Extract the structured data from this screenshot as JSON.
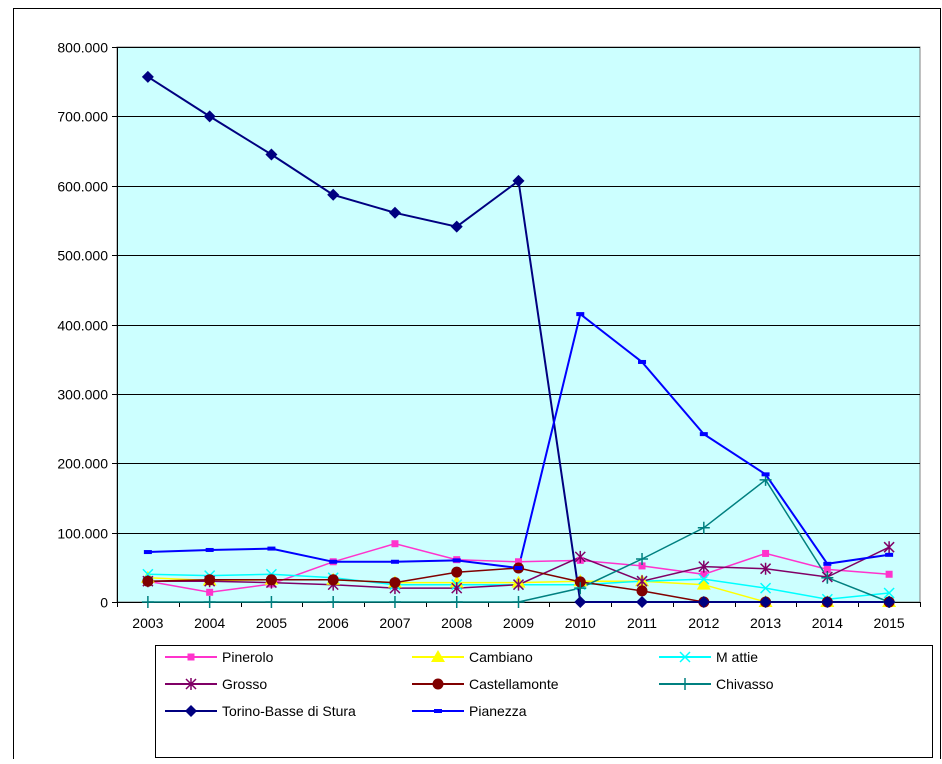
{
  "chart_data": {
    "type": "line",
    "title": "",
    "xlabel": "",
    "ylabel": "",
    "categories": [
      "2003",
      "2004",
      "2005",
      "2006",
      "2007",
      "2008",
      "2009",
      "2010",
      "2011",
      "2012",
      "2013",
      "2014",
      "2015"
    ],
    "ylim": [
      0,
      800000
    ],
    "y_ticks": [
      0,
      100000,
      200000,
      300000,
      400000,
      500000,
      600000,
      700000,
      800000
    ],
    "y_tick_labels": [
      "0",
      "100.000",
      "200.000",
      "300.000",
      "400.000",
      "500.000",
      "600.000",
      "700.000",
      "800.000"
    ],
    "grid": true,
    "plot_background": "#ccffff",
    "legend_placement": "bottom",
    "series": [
      {
        "name": "Pinerolo",
        "color": "#ff33cc",
        "marker": "square",
        "values": [
          30000,
          14000,
          26000,
          58000,
          84000,
          61000,
          58000,
          60000,
          52000,
          40000,
          70000,
          47000,
          40000
        ]
      },
      {
        "name": "Cambiano",
        "color": "#ffff00",
        "marker": "triangle",
        "values": [
          35000,
          31000,
          32000,
          32000,
          28000,
          28000,
          28000,
          30000,
          30000,
          25000,
          0,
          0,
          0
        ]
      },
      {
        "name": "M attie",
        "color": "#00ffff",
        "marker": "x",
        "values": [
          40000,
          38000,
          40000,
          35000,
          25000,
          25000,
          25000,
          25000,
          30000,
          33000,
          20000,
          4000,
          13000
        ]
      },
      {
        "name": "Grosso",
        "color": "#800066",
        "marker": "asterisk",
        "values": [
          30000,
          30000,
          28000,
          25000,
          20000,
          20000,
          25000,
          65000,
          30000,
          51000,
          48000,
          36000,
          79000
        ]
      },
      {
        "name": "Castellamonte",
        "color": "#800000",
        "marker": "circle",
        "values": [
          30000,
          32000,
          32000,
          32000,
          28000,
          43000,
          49000,
          29000,
          16000,
          0,
          0,
          0,
          0
        ]
      },
      {
        "name": "Chivasso",
        "color": "#008080",
        "marker": "plus",
        "values": [
          0,
          0,
          0,
          0,
          0,
          0,
          0,
          20000,
          62000,
          107000,
          176000,
          35000,
          0
        ]
      },
      {
        "name": "Torino-Basse di Stura",
        "color": "#000080",
        "marker": "diamond",
        "values": [
          757000,
          700000,
          645000,
          587000,
          561000,
          541000,
          607000,
          0,
          0,
          0,
          0,
          0,
          0
        ]
      },
      {
        "name": "Pianezza",
        "color": "#0000ff",
        "marker": "dash",
        "values": [
          72000,
          75000,
          77000,
          58000,
          58000,
          60000,
          49000,
          415000,
          346000,
          242000,
          184000,
          55000,
          68000
        ]
      }
    ]
  }
}
